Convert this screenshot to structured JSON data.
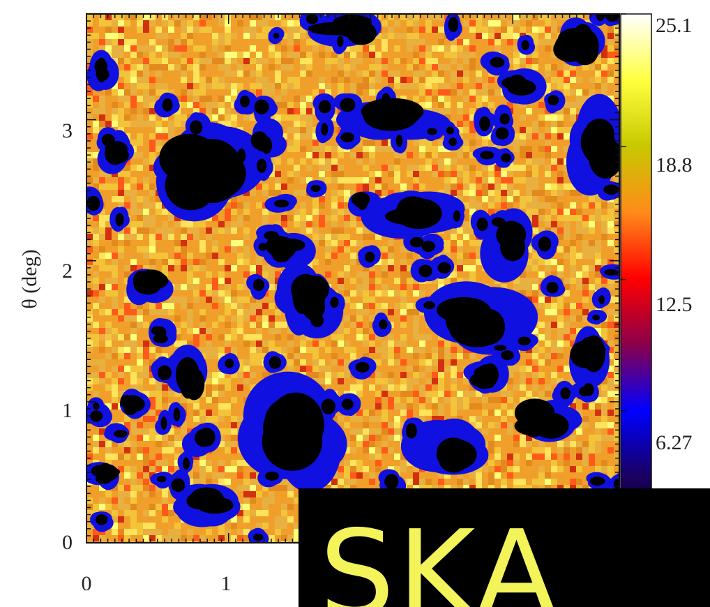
{
  "chart_data": {
    "type": "heatmap",
    "title": "",
    "xlabel": "",
    "ylabel": "θ (deg)",
    "xlim": [
      0,
      3.75
    ],
    "ylim": [
      0,
      3.75
    ],
    "x_ticks": [
      "0",
      "1"
    ],
    "y_ticks": [
      "0",
      "1",
      "2",
      "3"
    ],
    "colorbar": {
      "range": [
        0,
        25.1
      ],
      "tick_values": [
        6.27,
        12.5,
        18.8,
        25.1
      ],
      "tick_labels": [
        "6.27",
        "12.5",
        "18.8",
        "25.1"
      ],
      "colormap": [
        "#000000",
        "#1a0060",
        "#0000ff",
        "#8b004a",
        "#ff0000",
        "#ff8c1a",
        "#c8c800",
        "#ffff40",
        "#ffffff"
      ]
    },
    "overlay_label": "SKA"
  }
}
